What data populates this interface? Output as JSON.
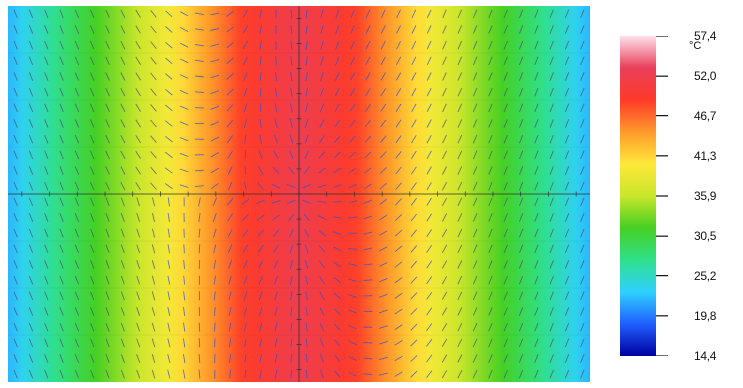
{
  "chart_data": {
    "type": "heatmap",
    "title": "",
    "colorbar": {
      "unit": "°C",
      "range": [
        14.4,
        57.4
      ],
      "ticks": [
        "57,4",
        "52,0",
        "46,7",
        "41,3",
        "35,9",
        "30,5",
        "25,2",
        "19,8",
        "14,4"
      ],
      "tick_values": [
        57.4,
        52.0,
        46.7,
        41.3,
        35.9,
        30.5,
        25.2,
        19.8,
        14.4
      ],
      "colormap": [
        "#0000a0",
        "#1f5fff",
        "#2fd0ff",
        "#2fe08a",
        "#46d023",
        "#c8e62a",
        "#ffe83a",
        "#ff9a2a",
        "#ff3a2a",
        "#e8405a",
        "#ffe0ec"
      ]
    },
    "field": {
      "description_values_x": [
        -1,
        -0.5,
        0,
        0.5,
        1
      ],
      "temperature_profile_x": [
        -1.0,
        -0.8,
        -0.6,
        -0.4,
        -0.2,
        0.0,
        0.2,
        0.4,
        0.6,
        0.8,
        1.0
      ],
      "temperature_values": [
        22.0,
        28.5,
        34.5,
        41.0,
        48.5,
        52.0,
        48.5,
        41.0,
        34.5,
        28.5,
        22.0
      ]
    },
    "vector_field": true,
    "axes": {
      "grid": true,
      "crosshair": true
    }
  }
}
